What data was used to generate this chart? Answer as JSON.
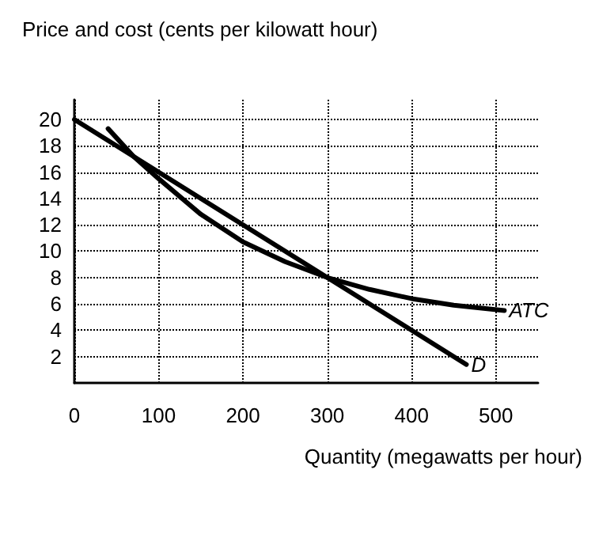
{
  "chart_data": {
    "type": "line",
    "ylabel": "Price and cost (cents per kilowatt hour)",
    "xlabel": "Quantity (megawatts per hour)",
    "series": [
      {
        "name": "ATC",
        "color": "#000000",
        "x": [
          40,
          70,
          100,
          150,
          200,
          250,
          300,
          350,
          400,
          450,
          510
        ],
        "values": [
          19.3,
          17.2,
          15.5,
          12.8,
          10.7,
          9.2,
          8,
          7.1,
          6.4,
          5.9,
          5.5
        ]
      },
      {
        "name": "D",
        "color": "#000000",
        "x": [
          0,
          465
        ],
        "values": [
          20,
          1.4
        ]
      }
    ],
    "xlim": [
      0,
      550
    ],
    "xticks": [
      0,
      100,
      200,
      300,
      400,
      500
    ],
    "ylim": [
      0,
      21.5
    ],
    "yticks": [
      2,
      4,
      6,
      8,
      10,
      12,
      14,
      16,
      18,
      20
    ],
    "grid": true,
    "marker": "none",
    "line_style": "solid"
  }
}
